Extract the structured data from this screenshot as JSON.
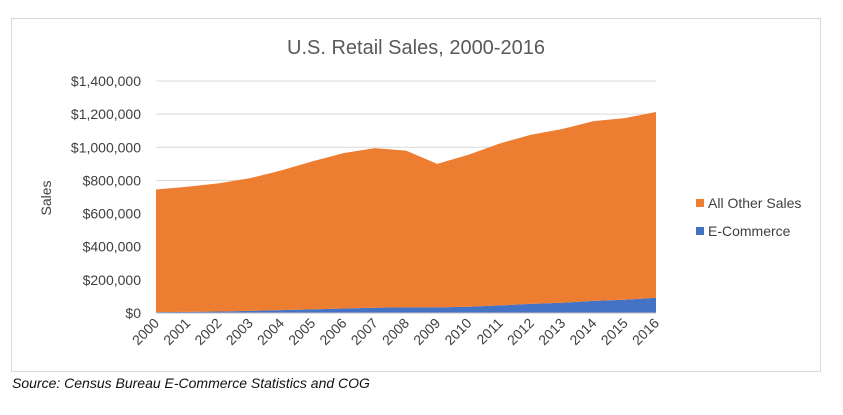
{
  "chart_data": {
    "type": "area",
    "stacked": true,
    "title": "U.S. Retail Sales, 2000-2016",
    "xlabel": "",
    "ylabel": "Sales",
    "categories": [
      "2000",
      "2001",
      "2002",
      "2003",
      "2004",
      "2005",
      "2006",
      "2007",
      "2008",
      "2009",
      "2010",
      "2011",
      "2012",
      "2013",
      "2014",
      "2015",
      "2016"
    ],
    "series": [
      {
        "name": "E-Commerce",
        "color": "#4472C4",
        "values": [
          5000,
          7000,
          9000,
          13000,
          17000,
          22000,
          27000,
          32000,
          34000,
          34000,
          38000,
          46000,
          55000,
          62000,
          73000,
          80000,
          92000
        ]
      },
      {
        "name": "All Other Sales",
        "color": "#ED7D31",
        "values": [
          740000,
          755000,
          773000,
          800000,
          843000,
          893000,
          938000,
          963000,
          946000,
          866000,
          917000,
          977000,
          1021000,
          1048000,
          1085000,
          1096000,
          1121000
        ]
      }
    ],
    "ylim": [
      0,
      1400000
    ],
    "yticks": [
      0,
      200000,
      400000,
      600000,
      800000,
      1000000,
      1200000,
      1400000
    ],
    "ytick_labels": [
      "$0",
      "$200,000",
      "$400,000",
      "$600,000",
      "$800,000",
      "$1,000,000",
      "$1,200,000",
      "$1,400,000"
    ],
    "grid": true,
    "legend": "right"
  },
  "source_text": "Source: Census Bureau E-Commerce Statistics and COG"
}
